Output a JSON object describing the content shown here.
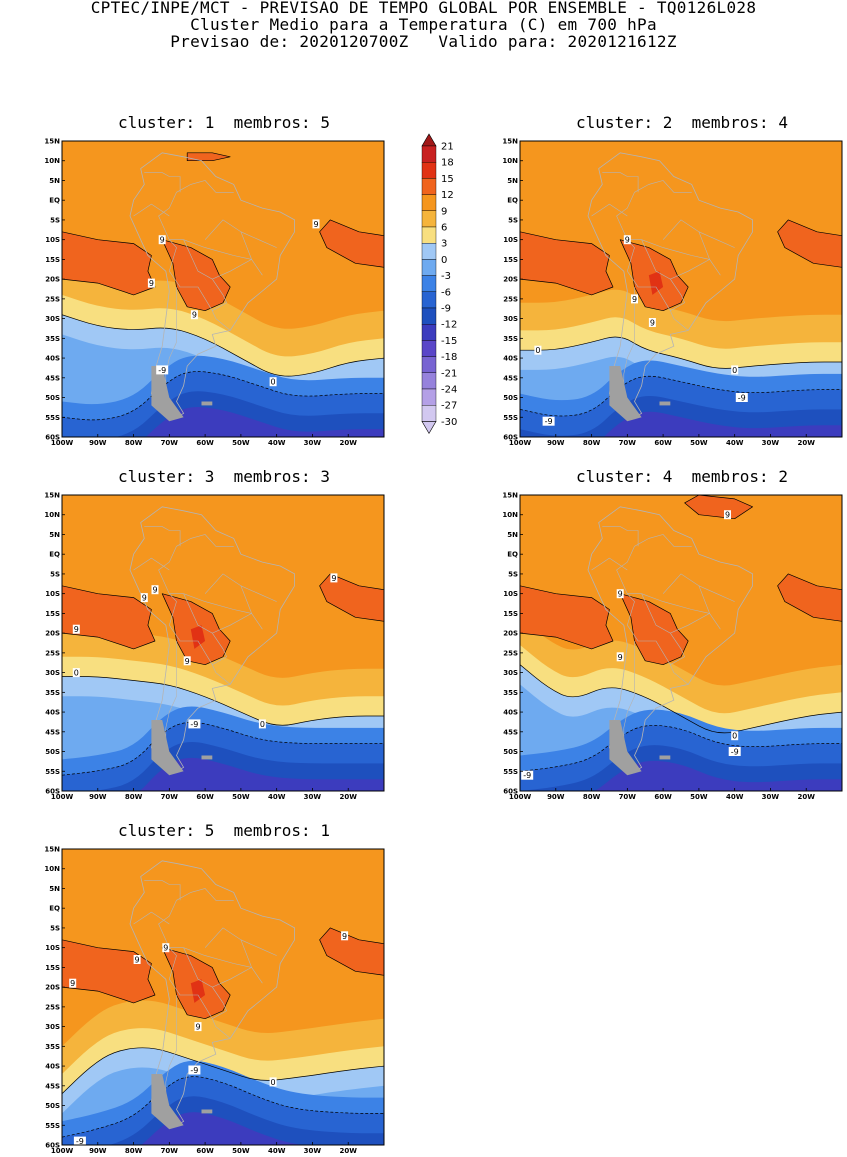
{
  "header": {
    "line1": "CPTEC/INPE/MCT - PREVISAO DE TEMPO GLOBAL POR ENSEMBLE - TQ0126L028",
    "line2": "Cluster Medio para a Temperatura (C) em 700 hPa",
    "line3": "Previsao de: 2020120700Z   Valido para: 2020121612Z"
  },
  "lat_labels": [
    "15N",
    "10N",
    "5N",
    "EQ",
    "5S",
    "10S",
    "15S",
    "20S",
    "25S",
    "30S",
    "35S",
    "40S",
    "45S",
    "50S",
    "55S",
    "60S"
  ],
  "lon_labels": [
    "100W",
    "90W",
    "80W",
    "70W",
    "60W",
    "50W",
    "40W",
    "30W",
    "20W"
  ],
  "panels": [
    {
      "title": "cluster: 1  membros: 5",
      "zero_line": [
        [
          -100,
          -29
        ],
        [
          -90,
          -32
        ],
        [
          -80,
          -33
        ],
        [
          -70,
          -32
        ],
        [
          -60,
          -35
        ],
        [
          -50,
          -40
        ],
        [
          -40,
          -45
        ],
        [
          -30,
          -44
        ],
        [
          -20,
          -41
        ],
        [
          -10,
          -40
        ]
      ],
      "minus9_line": [
        [
          -100,
          -55
        ],
        [
          -90,
          -56
        ],
        [
          -80,
          -54
        ],
        [
          -72,
          -47
        ],
        [
          -65,
          -43
        ],
        [
          -55,
          -44
        ],
        [
          -45,
          -47
        ],
        [
          -35,
          -50
        ],
        [
          -20,
          -49
        ],
        [
          -10,
          -49
        ]
      ],
      "labels": [
        {
          "t": "9",
          "lon": -72,
          "lat": -10
        },
        {
          "t": "9",
          "lon": -75,
          "lat": -21
        },
        {
          "t": "9",
          "lon": -63,
          "lat": -29
        },
        {
          "t": "9",
          "lon": -29,
          "lat": -6
        },
        {
          "t": "-9",
          "lon": -72,
          "lat": -43
        },
        {
          "t": "0",
          "lon": -41,
          "lat": -46
        }
      ]
    },
    {
      "title": "cluster: 2  membros: 4",
      "zero_line": [
        [
          -100,
          -38
        ],
        [
          -90,
          -38
        ],
        [
          -80,
          -36
        ],
        [
          -72,
          -34
        ],
        [
          -65,
          -38
        ],
        [
          -55,
          -40
        ],
        [
          -45,
          -43
        ],
        [
          -35,
          -42
        ],
        [
          -20,
          -41
        ],
        [
          -10,
          -41
        ]
      ],
      "minus9_line": [
        [
          -100,
          -53
        ],
        [
          -90,
          -55
        ],
        [
          -80,
          -54
        ],
        [
          -72,
          -47
        ],
        [
          -65,
          -44
        ],
        [
          -55,
          -46
        ],
        [
          -45,
          -48
        ],
        [
          -35,
          -49
        ],
        [
          -20,
          -48
        ],
        [
          -10,
          -48
        ]
      ],
      "labels": [
        {
          "t": "9",
          "lon": -70,
          "lat": -10
        },
        {
          "t": "9",
          "lon": -68,
          "lat": -25
        },
        {
          "t": "9",
          "lon": -63,
          "lat": -31
        },
        {
          "t": "0",
          "lon": -95,
          "lat": -38
        },
        {
          "t": "0",
          "lon": -40,
          "lat": -43
        },
        {
          "t": "-9",
          "lon": -38,
          "lat": -50
        },
        {
          "t": "-9",
          "lon": -92,
          "lat": -56
        }
      ]
    },
    {
      "title": "cluster: 3  membros: 3",
      "zero_line": [
        [
          -100,
          -31
        ],
        [
          -90,
          -31
        ],
        [
          -80,
          -32
        ],
        [
          -70,
          -33
        ],
        [
          -60,
          -36
        ],
        [
          -50,
          -40
        ],
        [
          -40,
          -44
        ],
        [
          -30,
          -42
        ],
        [
          -20,
          -41
        ],
        [
          -10,
          -41
        ]
      ],
      "minus9_line": [
        [
          -100,
          -56
        ],
        [
          -90,
          -55
        ],
        [
          -80,
          -53
        ],
        [
          -72,
          -45
        ],
        [
          -65,
          -42
        ],
        [
          -55,
          -44
        ],
        [
          -45,
          -47
        ],
        [
          -35,
          -48
        ],
        [
          -20,
          -48
        ],
        [
          -10,
          -48
        ]
      ],
      "labels": [
        {
          "t": "9",
          "lon": -74,
          "lat": -9
        },
        {
          "t": "9",
          "lon": -77,
          "lat": -11
        },
        {
          "t": "9",
          "lon": -96,
          "lat": -19
        },
        {
          "t": "9",
          "lon": -65,
          "lat": -27
        },
        {
          "t": "9",
          "lon": -24,
          "lat": -6
        },
        {
          "t": "0",
          "lon": -96,
          "lat": -30
        },
        {
          "t": "-9",
          "lon": -63,
          "lat": -43
        },
        {
          "t": "0",
          "lon": -44,
          "lat": -43
        }
      ]
    },
    {
      "title": "cluster: 4  membros: 2",
      "zero_line": [
        [
          -100,
          -28
        ],
        [
          -92,
          -34
        ],
        [
          -85,
          -37
        ],
        [
          -75,
          -33
        ],
        [
          -65,
          -36
        ],
        [
          -55,
          -41
        ],
        [
          -45,
          -46
        ],
        [
          -35,
          -44
        ],
        [
          -20,
          -41
        ],
        [
          -10,
          -40
        ]
      ],
      "minus9_line": [
        [
          -100,
          -55
        ],
        [
          -90,
          -54
        ],
        [
          -80,
          -52
        ],
        [
          -72,
          -46
        ],
        [
          -65,
          -43
        ],
        [
          -55,
          -44
        ],
        [
          -45,
          -48
        ],
        [
          -35,
          -49
        ],
        [
          -20,
          -48
        ],
        [
          -10,
          -48
        ]
      ],
      "labels": [
        {
          "t": "9",
          "lon": -42,
          "lat": 10
        },
        {
          "t": "9",
          "lon": -72,
          "lat": -10
        },
        {
          "t": "9",
          "lon": -72,
          "lat": -26
        },
        {
          "t": "0",
          "lon": -40,
          "lat": -46
        },
        {
          "t": "-9",
          "lon": -40,
          "lat": -50
        },
        {
          "t": "-9",
          "lon": -98,
          "lat": -56
        }
      ]
    },
    {
      "title": "cluster: 5  membros: 1",
      "zero_line": [
        [
          -100,
          -47
        ],
        [
          -92,
          -40
        ],
        [
          -85,
          -36
        ],
        [
          -75,
          -35
        ],
        [
          -65,
          -38
        ],
        [
          -55,
          -41
        ],
        [
          -45,
          -44
        ],
        [
          -35,
          -43
        ],
        [
          -20,
          -41
        ],
        [
          -10,
          -40
        ]
      ],
      "minus9_line": [
        [
          -100,
          -58
        ],
        [
          -90,
          -56
        ],
        [
          -80,
          -53
        ],
        [
          -72,
          -46
        ],
        [
          -65,
          -42
        ],
        [
          -55,
          -44
        ],
        [
          -45,
          -48
        ],
        [
          -35,
          -51
        ],
        [
          -20,
          -52
        ],
        [
          -10,
          -52
        ]
      ],
      "labels": [
        {
          "t": "9",
          "lon": -71,
          "lat": -10
        },
        {
          "t": "9",
          "lon": -79,
          "lat": -13
        },
        {
          "t": "9",
          "lon": -97,
          "lat": -19
        },
        {
          "t": "9",
          "lon": -62,
          "lat": -30
        },
        {
          "t": "9",
          "lon": -21,
          "lat": -7
        },
        {
          "t": "-9",
          "lon": -63,
          "lat": -41
        },
        {
          "t": "0",
          "lon": -41,
          "lat": -44
        },
        {
          "t": "-9",
          "lon": -95,
          "lat": -59
        }
      ]
    }
  ],
  "colorbar": {
    "levels": [
      "21",
      "18",
      "15",
      "12",
      "9",
      "6",
      "3",
      "0",
      "-3",
      "-6",
      "-9",
      "-12",
      "-15",
      "-18",
      "-21",
      "-24",
      "-27",
      "-30"
    ],
    "colors": [
      "#a01818",
      "#c82020",
      "#e13214",
      "#f0641e",
      "#f5961e",
      "#f5b43c",
      "#f8df80",
      "#a0c8f5",
      "#6eaaf0",
      "#3c82e6",
      "#2864d2",
      "#1e50be",
      "#3c3cbe",
      "#5a46c8",
      "#7864d2",
      "#9682dc",
      "#b4a0e6",
      "#d2c8f0"
    ]
  },
  "field_colors": {
    "warm_orange": "#f5961e",
    "hot_orange": "#f0641e",
    "hot_red": "#e13214",
    "light_orange": "#f5b43c",
    "pale_yellow": "#f8df80",
    "land_line": "#b4b4b4",
    "island_gray": "#a0a0a0"
  }
}
